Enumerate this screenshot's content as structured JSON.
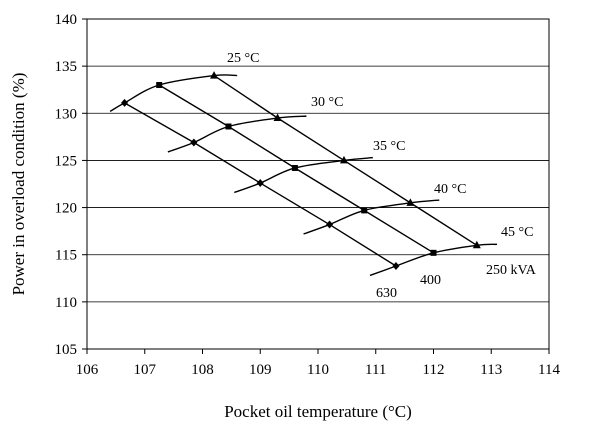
{
  "chart_data": {
    "type": "line",
    "title": "",
    "xlabel": "Pocket oil temperature (°C)",
    "ylabel": "Power in overload condition (%)",
    "xlim": [
      106,
      114
    ],
    "ylim": [
      105,
      140
    ],
    "xticks": [
      106,
      107,
      108,
      109,
      110,
      111,
      112,
      113,
      114
    ],
    "yticks": [
      105,
      110,
      115,
      120,
      125,
      130,
      135,
      140
    ],
    "grid": "horizontal",
    "legend": "none",
    "series": [
      {
        "name": "250 kVA",
        "marker": "triangle",
        "x": [
          108.2,
          109.3,
          110.45,
          111.6,
          112.75
        ],
        "y": [
          134.0,
          129.5,
          125.0,
          120.5,
          116.0
        ]
      },
      {
        "name": "400",
        "marker": "square",
        "x": [
          107.25,
          108.45,
          109.6,
          110.8,
          112.0
        ],
        "y": [
          133.0,
          128.6,
          124.2,
          119.7,
          115.2
        ]
      },
      {
        "name": "630",
        "marker": "diamond",
        "x": [
          106.65,
          107.85,
          109.0,
          110.2,
          111.35
        ],
        "y": [
          131.1,
          126.9,
          122.6,
          118.2,
          113.8
        ]
      }
    ],
    "ambient_curves": [
      {
        "label": "25 °C",
        "x": [
          106.4,
          106.65,
          107.25,
          108.2,
          108.6
        ],
        "y": [
          130.2,
          131.1,
          133.0,
          134.0,
          134.0
        ]
      },
      {
        "label": "30 °C",
        "x": [
          107.4,
          107.85,
          108.45,
          109.3,
          109.8
        ],
        "y": [
          125.9,
          126.9,
          128.6,
          129.5,
          129.7
        ]
      },
      {
        "label": "35 °C",
        "x": [
          108.55,
          109.0,
          109.6,
          110.45,
          110.95
        ],
        "y": [
          121.6,
          122.6,
          124.2,
          125.0,
          125.3
        ]
      },
      {
        "label": "40 °C",
        "x": [
          109.75,
          110.2,
          110.8,
          111.6,
          112.1
        ],
        "y": [
          117.2,
          118.2,
          119.7,
          120.5,
          120.8
        ]
      },
      {
        "label": "45 °C",
        "x": [
          110.9,
          111.35,
          112.0,
          112.75,
          113.1
        ],
        "y": [
          112.8,
          113.8,
          115.2,
          116.0,
          116.1
        ]
      }
    ],
    "annotations": [
      "25 °C",
      "30 °C",
      "35 °C",
      "40 °C",
      "45 °C",
      "250 kVA",
      "400",
      "630"
    ]
  }
}
